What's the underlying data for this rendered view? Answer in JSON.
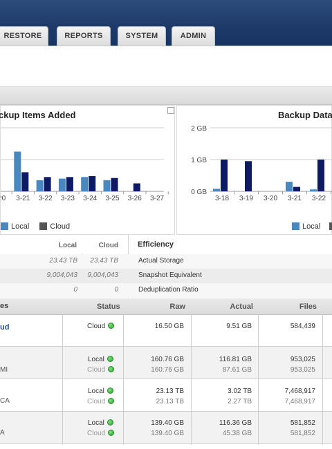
{
  "nav": {
    "tabs": [
      "RESTORE",
      "REPORTS",
      "SYSTEM",
      "ADMIN"
    ]
  },
  "left_panel": {
    "title": "ckup Items Added",
    "legend": [
      "Local",
      "Cloud"
    ]
  },
  "right_panel": {
    "title": "Backup Data",
    "legend": [
      "Local"
    ]
  },
  "colors": {
    "local": "#4a87bd",
    "cloud": "#0e1a63",
    "navbar": "#1d3a68"
  },
  "chart_data": [
    {
      "type": "bar",
      "title": "ckup Items Added",
      "categories": [
        "-20",
        "3-21",
        "3-22",
        "3-23",
        "3-24",
        "3-25",
        "3-26",
        "3-27"
      ],
      "series": [
        {
          "name": "Local",
          "values": [
            0,
            1.25,
            0.35,
            0.4,
            0.45,
            0.35,
            0,
            0
          ]
        },
        {
          "name": "Cloud",
          "values": [
            0,
            0.6,
            0.45,
            0.45,
            0.48,
            0.42,
            0.25,
            0
          ]
        }
      ],
      "ylim": [
        0,
        2
      ]
    },
    {
      "type": "bar",
      "title": "Backup Data",
      "categories": [
        "3-18",
        "3-19",
        "3-20",
        "3-21",
        "3-22"
      ],
      "series": [
        {
          "name": "Local",
          "values": [
            0.08,
            0,
            0,
            0.3,
            0.06
          ]
        },
        {
          "name": "Cloud",
          "values": [
            1.0,
            0.95,
            0,
            0.14,
            1.0
          ]
        }
      ],
      "yticks": [
        "2 GB",
        "1 GB",
        "0 GB"
      ],
      "ylim": [
        0,
        2
      ]
    }
  ],
  "stats": {
    "headers": {
      "local": "Local",
      "cloud": "Cloud",
      "efficiency": "Efficiency"
    },
    "rows": [
      {
        "local": "23.43 TB",
        "cloud": "23.43 TB",
        "label": "Actual Storage"
      },
      {
        "local": "9,004,043",
        "cloud": "9,004,043",
        "label": "Snapshot Equivalent"
      },
      {
        "local": "0",
        "cloud": "0",
        "label": "Deduplication Ratio"
      }
    ]
  },
  "devices": {
    "headers": {
      "name": "es",
      "status": "Status",
      "raw": "Raw",
      "actual": "Actual",
      "files": "Files"
    },
    "rows": [
      {
        "name": "ud",
        "sub": "",
        "status1": "Cloud",
        "status2": "",
        "raw1": "16.50 GB",
        "raw2": "",
        "actual1": "9.51 GB",
        "actual2": "",
        "files1": "584,439",
        "files2": ""
      },
      {
        "name": "",
        "sub": "MI",
        "status1": "Local",
        "status2": "Cloud",
        "raw1": "160.76 GB",
        "raw2": "160.76 GB",
        "actual1": "116.81 GB",
        "actual2": "87.61 GB",
        "files1": "953,025",
        "files2": "953,025"
      },
      {
        "name": "",
        "sub": "CA",
        "status1": "Local",
        "status2": "Cloud",
        "raw1": "23.13 TB",
        "raw2": "23.13 TB",
        "actual1": "3.02 TB",
        "actual2": "2.27 TB",
        "files1": "7,468,917",
        "files2": "7,468,917"
      },
      {
        "name": "",
        "sub": "A",
        "status1": "Local",
        "status2": "Cloud",
        "raw1": "139.40 GB",
        "raw2": "139.40 GB",
        "actual1": "116.36 GB",
        "actual2": "45.38 GB",
        "files1": "581,852",
        "files2": "581,852"
      }
    ]
  }
}
